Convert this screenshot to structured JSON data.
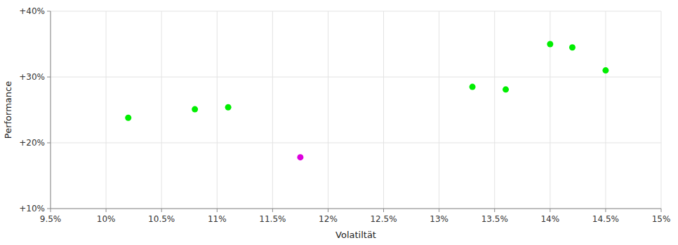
{
  "chart_data": {
    "type": "scatter",
    "xlabel": "Volatiltät",
    "ylabel": "Performance",
    "xlim": [
      0.095,
      0.15
    ],
    "ylim": [
      0.1,
      0.4
    ],
    "xticks": [
      {
        "value": 0.095,
        "label": "9.5%"
      },
      {
        "value": 0.1,
        "label": "10%"
      },
      {
        "value": 0.105,
        "label": "10.5%"
      },
      {
        "value": 0.11,
        "label": "11%"
      },
      {
        "value": 0.115,
        "label": "11.5%"
      },
      {
        "value": 0.12,
        "label": "12%"
      },
      {
        "value": 0.125,
        "label": "12.5%"
      },
      {
        "value": 0.13,
        "label": "13%"
      },
      {
        "value": 0.135,
        "label": "13.5%"
      },
      {
        "value": 0.14,
        "label": "14%"
      },
      {
        "value": 0.145,
        "label": "14.5%"
      },
      {
        "value": 0.15,
        "label": "15%"
      }
    ],
    "yticks": [
      {
        "value": 0.1,
        "label": "+10%"
      },
      {
        "value": 0.2,
        "label": "+20%"
      },
      {
        "value": 0.3,
        "label": "+30%"
      },
      {
        "value": 0.4,
        "label": "+40%"
      }
    ],
    "grid": true,
    "series": [
      {
        "color": "#00ee00",
        "x": [
          0.102,
          0.108,
          0.111,
          0.133,
          0.136,
          0.14,
          0.142,
          0.145
        ],
        "values": [
          0.238,
          0.251,
          0.254,
          0.285,
          0.281,
          0.35,
          0.345,
          0.31
        ]
      },
      {
        "color": "#dd00dd",
        "x": [
          0.1175
        ],
        "values": [
          0.178
        ]
      }
    ]
  }
}
